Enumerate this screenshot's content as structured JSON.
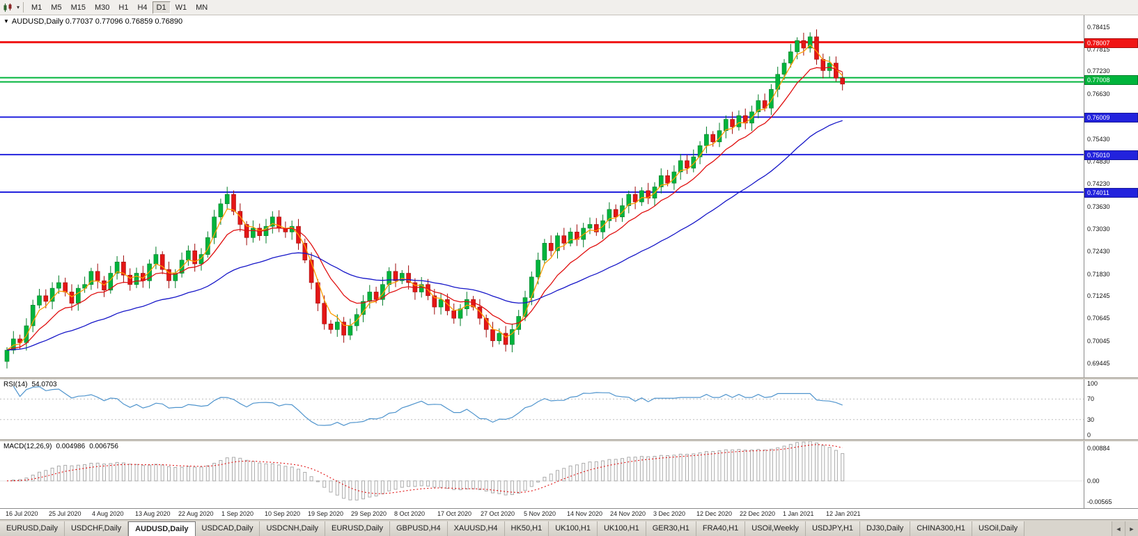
{
  "toolbar": {
    "dropdown_caret": "▾",
    "timeframes": [
      "M1",
      "M5",
      "M15",
      "M30",
      "H1",
      "H4",
      "D1",
      "W1",
      "MN"
    ],
    "active_timeframe": "D1"
  },
  "chart": {
    "dropdown_triangle": "▼",
    "info_line": "AUDUSD,Daily 0.77037 0.77096 0.76859 0.76890",
    "axis_ticks": [
      "0.78415",
      "0.77815",
      "0.77230",
      "0.76630",
      "0.76030",
      "0.75430",
      "0.74830",
      "0.74230",
      "0.73630",
      "0.73030",
      "0.72430",
      "0.71830",
      "0.71245",
      "0.70645",
      "0.70045",
      "0.69445"
    ],
    "hlines": [
      {
        "price": 0.78007,
        "color": "#F01515",
        "width": 3,
        "label": "0.78007"
      },
      {
        "price": 0.7706,
        "color": "#00B43C",
        "width": 2,
        "label": null
      },
      {
        "price": 0.7695,
        "color": "#00B43C",
        "width": 2,
        "label": "0.77008",
        "label_price": 0.77008
      },
      {
        "price": 0.76009,
        "color": "#2222DD",
        "width": 2,
        "label": "0.76009"
      },
      {
        "price": 0.7501,
        "color": "#2222DD",
        "width": 2,
        "label": "0.75010"
      },
      {
        "price": 0.74011,
        "color": "#2222DD",
        "width": 2,
        "label": "0.74011"
      }
    ],
    "colors": {
      "up": "#00B43C",
      "up_border": "#027C28",
      "down": "#E41616",
      "down_border": "#9E0A0A",
      "ma_fast": "#FF9C00",
      "ma_mid": "#E01010",
      "ma_slow": "#1616C8"
    }
  },
  "rsi": {
    "name": "RSI(14)",
    "value": "54.0703",
    "axis_labels": [
      "100",
      "70",
      "30",
      "0"
    ],
    "levels": [
      70,
      30
    ],
    "line_color": "#4F94CD"
  },
  "macd": {
    "name": "MACD(12,26,9)",
    "macd_value": "0.004986",
    "signal_value": "0.006756",
    "axis_labels": [
      "0.00884",
      "0.00",
      "-0.00565"
    ],
    "axis_values": [
      0.00884,
      0,
      -0.00565
    ],
    "signal_color": "#E01010",
    "hist_color": "#ABABAB"
  },
  "time_axis": {
    "labels": [
      "16 Jul 2020",
      "25 Jul 2020",
      "4 Aug 2020",
      "13 Aug 2020",
      "22 Aug 2020",
      "1 Sep 2020",
      "10 Sep 2020",
      "19 Sep 2020",
      "29 Sep 2020",
      "8 Oct 2020",
      "17 Oct 2020",
      "27 Oct 2020",
      "5 Nov 2020",
      "14 Nov 2020",
      "24 Nov 2020",
      "3 Dec 2020",
      "12 Dec 2020",
      "22 Dec 2020",
      "1 Jan 2021",
      "12 Jan 2021"
    ]
  },
  "tabbar": {
    "tabs": [
      "EURUSD,Daily",
      "USDCHF,Daily",
      "AUDUSD,Daily",
      "USDCAD,Daily",
      "USDCNH,Daily",
      "EURUSD,Daily",
      "GBPUSD,H4",
      "XAUUSD,H4",
      "HK50,H1",
      "UK100,H1",
      "UK100,H1",
      "GER30,H1",
      "FRA40,H1",
      "USOil,Weekly",
      "USDJPY,H1",
      "DJ30,Daily",
      "CHINA300,H1",
      "USOil,Daily"
    ],
    "active_index": 2,
    "left_arrow": "◄",
    "right_arrow": "►"
  },
  "chart_data": {
    "type": "candlestick",
    "symbol": "AUDUSD",
    "timeframe": "Daily",
    "title": "AUDUSD,Daily",
    "ohlc_current": {
      "open": 0.77037,
      "high": 0.77096,
      "low": 0.76859,
      "close": 0.7689
    },
    "ylim": [
      0.693,
      0.785
    ],
    "x_labels": [
      "16 Jul 2020",
      "25 Jul 2020",
      "4 Aug 2020",
      "13 Aug 2020",
      "22 Aug 2020",
      "1 Sep 2020",
      "10 Sep 2020",
      "19 Sep 2020",
      "29 Sep 2020",
      "8 Oct 2020",
      "17 Oct 2020",
      "27 Oct 2020",
      "5 Nov 2020",
      "14 Nov 2020",
      "24 Nov 2020",
      "3 Dec 2020",
      "12 Dec 2020",
      "22 Dec 2020",
      "1 Jan 2021",
      "12 Jan 2021"
    ],
    "closes": [
      0.698,
      0.701,
      0.7,
      0.7045,
      0.71,
      0.7125,
      0.711,
      0.7145,
      0.716,
      0.7135,
      0.7105,
      0.7145,
      0.7155,
      0.719,
      0.7165,
      0.714,
      0.7185,
      0.7215,
      0.718,
      0.7155,
      0.7185,
      0.7165,
      0.721,
      0.7235,
      0.7195,
      0.7165,
      0.7185,
      0.722,
      0.7245,
      0.721,
      0.7235,
      0.728,
      0.7335,
      0.737,
      0.7395,
      0.735,
      0.7315,
      0.728,
      0.7305,
      0.7285,
      0.731,
      0.7335,
      0.7305,
      0.7295,
      0.731,
      0.7265,
      0.722,
      0.716,
      0.7105,
      0.705,
      0.7035,
      0.7055,
      0.702,
      0.7045,
      0.7075,
      0.711,
      0.7135,
      0.7115,
      0.7155,
      0.719,
      0.7165,
      0.7185,
      0.716,
      0.7135,
      0.7155,
      0.7125,
      0.7095,
      0.7115,
      0.7085,
      0.7065,
      0.709,
      0.7115,
      0.7095,
      0.7065,
      0.7035,
      0.7005,
      0.7025,
      0.6995,
      0.7035,
      0.707,
      0.712,
      0.7175,
      0.722,
      0.7265,
      0.7245,
      0.7285,
      0.7265,
      0.7295,
      0.7275,
      0.7305,
      0.7315,
      0.7295,
      0.7325,
      0.7355,
      0.7335,
      0.7365,
      0.7395,
      0.7375,
      0.7405,
      0.7385,
      0.7415,
      0.7445,
      0.7425,
      0.7455,
      0.7485,
      0.7465,
      0.7495,
      0.7525,
      0.7555,
      0.7535,
      0.7565,
      0.7595,
      0.7575,
      0.7605,
      0.7585,
      0.7615,
      0.7645,
      0.7625,
      0.7675,
      0.7715,
      0.7745,
      0.7775,
      0.7805,
      0.7785,
      0.7815,
      0.7755,
      0.7725,
      0.7745,
      0.7705,
      0.7689
    ],
    "moving_averages": [
      {
        "name": "fast",
        "color": "#FF9C00",
        "ema_k": 0.45
      },
      {
        "name": "mid",
        "color": "#E01010",
        "ema_k": 0.18
      },
      {
        "name": "slow",
        "color": "#1616C8",
        "ema_k": 0.055
      }
    ],
    "hlines": [
      0.78007,
      0.77008,
      0.76009,
      0.7501,
      0.74011
    ],
    "indicators": [
      {
        "type": "RSI",
        "period": 14,
        "current": 54.0703,
        "range": [
          0,
          100
        ],
        "levels": [
          30,
          70
        ]
      },
      {
        "type": "MACD",
        "fast": 12,
        "slow": 26,
        "signal": 9,
        "current_macd": 0.004986,
        "current_signal": 0.006756,
        "range": [
          -0.00565,
          0.00884
        ]
      }
    ]
  }
}
